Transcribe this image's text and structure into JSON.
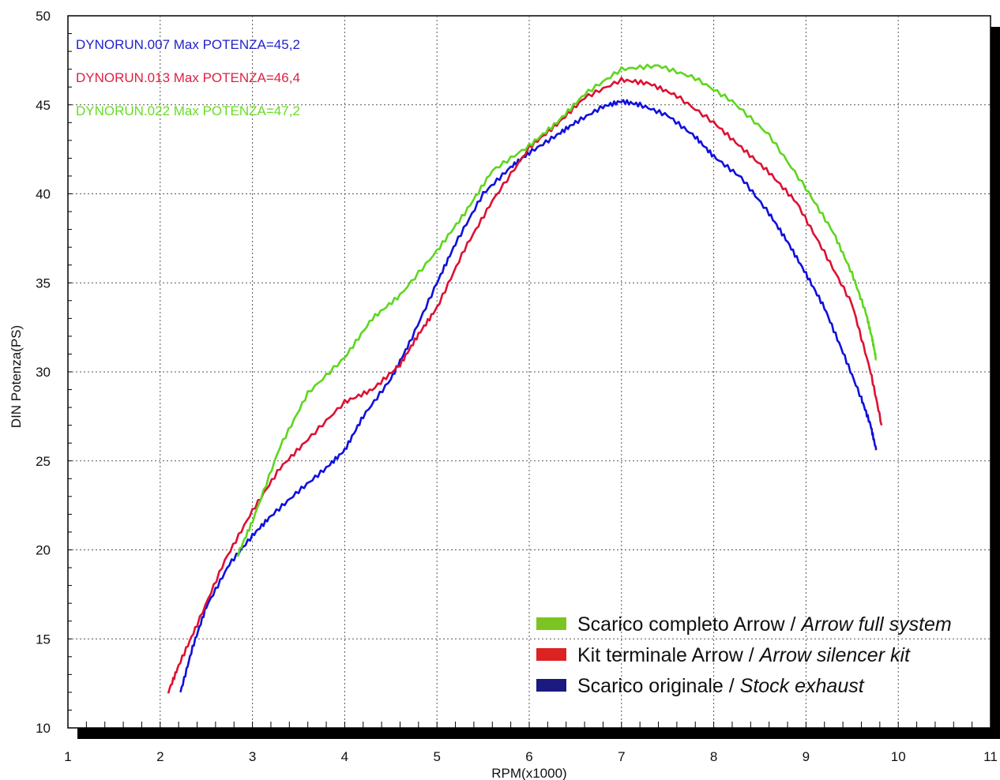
{
  "chart_data": {
    "type": "line",
    "xlabel": "RPM(x1000)",
    "ylabel": "DIN Potenza(PS)",
    "xlim": [
      1,
      11
    ],
    "ylim": [
      10,
      50
    ],
    "xticks": [
      "1",
      "2",
      "3",
      "4",
      "5",
      "6",
      "7",
      "8",
      "9",
      "10",
      "11"
    ],
    "yticks": [
      "10",
      "15",
      "20",
      "25",
      "30",
      "35",
      "40",
      "45",
      "50"
    ],
    "grid": true,
    "run_labels": [
      {
        "text": "DYNORUN.007  Max POTENZA=45,2",
        "color": "#2222cc"
      },
      {
        "text": "DYNORUN.013  Max POTENZA=46,4",
        "color": "#dd2244"
      },
      {
        "text": "DYNORUN.022  Max POTENZA=47,2",
        "color": "#66dd22"
      }
    ],
    "legend_position": "bottom-right",
    "legend": [
      {
        "label": "Scarico completo Arrow / ",
        "label_italic": "Arrow full system",
        "color": "#7cc520"
      },
      {
        "label": "Kit terminale Arrow / ",
        "label_italic": "Arrow silencer kit",
        "color": "#dd2222"
      },
      {
        "label": "Scarico originale / ",
        "label_italic": "Stock exhaust",
        "color": "#1a1a80"
      }
    ],
    "series": [
      {
        "color": "#1010dd",
        "points": [
          [
            2.22,
            12.0
          ],
          [
            2.35,
            14.5
          ],
          [
            2.5,
            16.8
          ],
          [
            2.75,
            19.2
          ],
          [
            3.0,
            20.8
          ],
          [
            3.2,
            21.9
          ],
          [
            3.5,
            23.3
          ],
          [
            3.8,
            24.6
          ],
          [
            4.0,
            25.6
          ],
          [
            4.2,
            27.5
          ],
          [
            4.5,
            29.6
          ],
          [
            4.7,
            31.6
          ],
          [
            5.0,
            35.0
          ],
          [
            5.2,
            37.2
          ],
          [
            5.5,
            40.0
          ],
          [
            5.8,
            41.5
          ],
          [
            6.0,
            42.3
          ],
          [
            6.3,
            43.3
          ],
          [
            6.5,
            44.0
          ],
          [
            6.8,
            44.9
          ],
          [
            7.0,
            45.2
          ],
          [
            7.2,
            45.0
          ],
          [
            7.5,
            44.4
          ],
          [
            7.8,
            43.2
          ],
          [
            8.0,
            42.1
          ],
          [
            8.3,
            40.9
          ],
          [
            8.6,
            38.9
          ],
          [
            8.8,
            37.3
          ],
          [
            9.0,
            35.5
          ],
          [
            9.2,
            33.6
          ],
          [
            9.4,
            31.1
          ],
          [
            9.6,
            28.5
          ],
          [
            9.7,
            27.0
          ],
          [
            9.76,
            25.6
          ]
        ]
      },
      {
        "color": "#dd1133",
        "points": [
          [
            2.08,
            11.9
          ],
          [
            2.2,
            13.5
          ],
          [
            2.4,
            15.8
          ],
          [
            2.7,
            19.4
          ],
          [
            3.0,
            22.2
          ],
          [
            3.3,
            24.6
          ],
          [
            3.6,
            26.2
          ],
          [
            4.0,
            28.3
          ],
          [
            4.3,
            29.0
          ],
          [
            4.6,
            30.4
          ],
          [
            4.8,
            32.1
          ],
          [
            5.0,
            33.6
          ],
          [
            5.3,
            36.9
          ],
          [
            5.6,
            39.6
          ],
          [
            6.0,
            42.6
          ],
          [
            6.3,
            43.9
          ],
          [
            6.6,
            45.4
          ],
          [
            7.0,
            46.4
          ],
          [
            7.3,
            46.2
          ],
          [
            7.6,
            45.5
          ],
          [
            8.0,
            44.0
          ],
          [
            8.3,
            42.6
          ],
          [
            8.6,
            41.2
          ],
          [
            8.9,
            39.5
          ],
          [
            9.2,
            36.7
          ],
          [
            9.5,
            33.8
          ],
          [
            9.7,
            30.0
          ],
          [
            9.82,
            27.0
          ]
        ]
      },
      {
        "color": "#5ed61e",
        "points": [
          [
            2.83,
            19.6
          ],
          [
            3.0,
            21.6
          ],
          [
            3.3,
            25.8
          ],
          [
            3.6,
            28.8
          ],
          [
            4.0,
            30.8
          ],
          [
            4.3,
            33.0
          ],
          [
            4.6,
            34.3
          ],
          [
            5.0,
            36.8
          ],
          [
            5.3,
            38.9
          ],
          [
            5.6,
            41.3
          ],
          [
            6.0,
            42.7
          ],
          [
            6.3,
            44.0
          ],
          [
            6.6,
            45.6
          ],
          [
            7.0,
            47.0
          ],
          [
            7.4,
            47.2
          ],
          [
            7.8,
            46.5
          ],
          [
            8.2,
            45.2
          ],
          [
            8.6,
            43.3
          ],
          [
            9.0,
            40.3
          ],
          [
            9.3,
            37.8
          ],
          [
            9.5,
            35.5
          ],
          [
            9.65,
            33.3
          ],
          [
            9.72,
            31.8
          ],
          [
            9.76,
            30.7
          ]
        ]
      }
    ]
  }
}
